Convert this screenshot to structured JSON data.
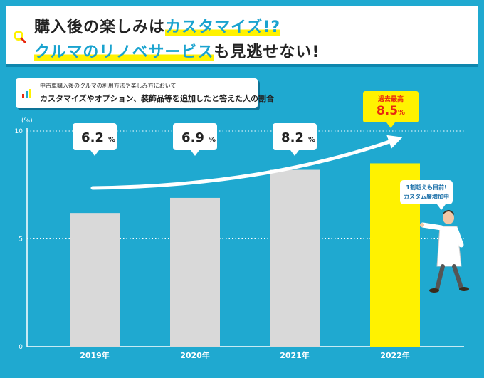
{
  "header": {
    "line1_dark": "購入後の楽しみは",
    "line1_highlight": "カスタマイズ!?",
    "line2_highlight": "クルマのリノベサービス",
    "line2_dark": "も見逃せない!"
  },
  "subtitle": {
    "small": "中古車購入後のクルマの利用方法や楽しみ方において",
    "main": "カスタマイズやオプション、装飾品等を追加したと答えた人の割合"
  },
  "callout": {
    "line1": "1割超えも目前!",
    "line2": "カスタム層増加中"
  },
  "highlight_box": {
    "label": "過去最高"
  },
  "colors": {
    "background": "#1fa9d0",
    "bar": "#d9d9d9",
    "highlight_bar": "#fff200",
    "record_text": "#e8280f",
    "title_accent": "#1aa3cf"
  },
  "chart_data": {
    "type": "bar",
    "title": "カスタマイズやオプション、装飾品等を追加したと答えた人の割合",
    "unit_label": "(%)",
    "categories": [
      "2019年",
      "2020年",
      "2021年",
      "2022年"
    ],
    "values": [
      6.2,
      6.9,
      8.2,
      8.5
    ],
    "value_labels": [
      "6.2",
      "6.9",
      "8.2",
      "8.5"
    ],
    "value_unit": "%",
    "highlight_index": 3,
    "y_ticks": [
      0,
      5,
      10
    ],
    "ylim": [
      0,
      10
    ],
    "gridlines": "dotted",
    "trend_arrow": true
  }
}
